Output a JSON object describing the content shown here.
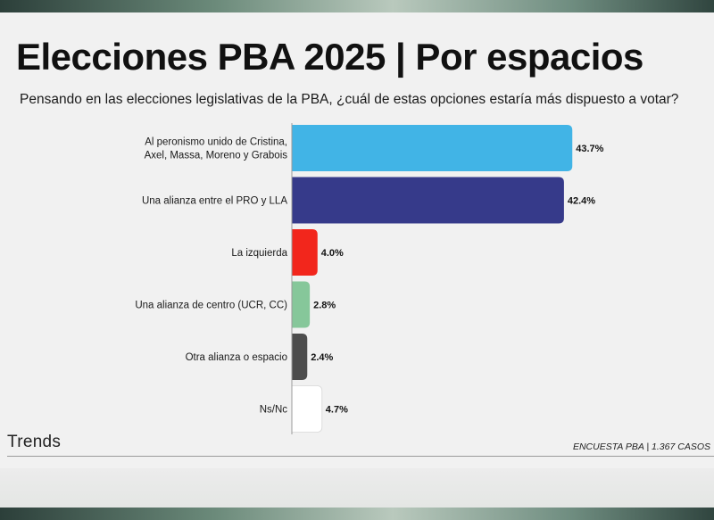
{
  "header": {
    "title": "Elecciones PBA 2025 | Por espacios",
    "subtitle": "Pensando en las elecciones legislativas de la PBA, ¿cuál de estas opciones estaría más dispuesto a votar?"
  },
  "footer": {
    "brand": "Trends",
    "source": "ENCUESTA PBA | 1.367 CASOS"
  },
  "colors": {
    "accent_band": "#6b8a7a"
  },
  "chart_data": {
    "type": "bar",
    "orientation": "horizontal",
    "categories": [
      [
        "Al peronismo unido de Cristina,",
        "Axel, Massa, Moreno y Grabois"
      ],
      [
        "Una alianza entre el PRO y LLA"
      ],
      [
        "La izquierda"
      ],
      [
        "Una alianza de centro (UCR, CC)"
      ],
      [
        "Otra alianza o espacio"
      ],
      [
        "Ns/Nc"
      ]
    ],
    "values": [
      43.7,
      42.4,
      4.0,
      2.8,
      2.4,
      4.7
    ],
    "value_labels": [
      "43.7%",
      "42.4%",
      "4.0%",
      "2.8%",
      "2.4%",
      "4.7%"
    ],
    "colors": [
      "#41b4e6",
      "#363a8a",
      "#f2261c",
      "#86c79a",
      "#4d4d4d",
      "#ffffff"
    ],
    "xlim": [
      0,
      44.5
    ],
    "grid": false,
    "legend": "none"
  }
}
